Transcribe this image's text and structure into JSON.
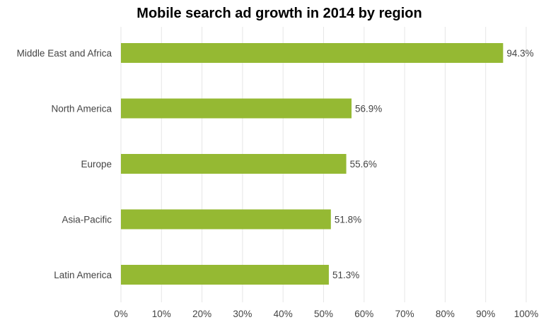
{
  "chart_data": {
    "type": "bar",
    "orientation": "horizontal",
    "title": "Mobile search ad growth in 2014 by region",
    "categories": [
      "Middle East and Africa",
      "North America",
      "Europe",
      "Asia-Pacific",
      "Latin America"
    ],
    "values": [
      94.3,
      56.9,
      55.6,
      51.8,
      51.3
    ],
    "data_labels": [
      "94.3%",
      "56.9%",
      "55.6%",
      "51.8%",
      "51.3%"
    ],
    "xlim": [
      0,
      100
    ],
    "x_ticks": [
      "0%",
      "10%",
      "20%",
      "30%",
      "40%",
      "50%",
      "60%",
      "70%",
      "80%",
      "90%",
      "100%"
    ],
    "grid": true,
    "bar_color": "#95b933"
  }
}
